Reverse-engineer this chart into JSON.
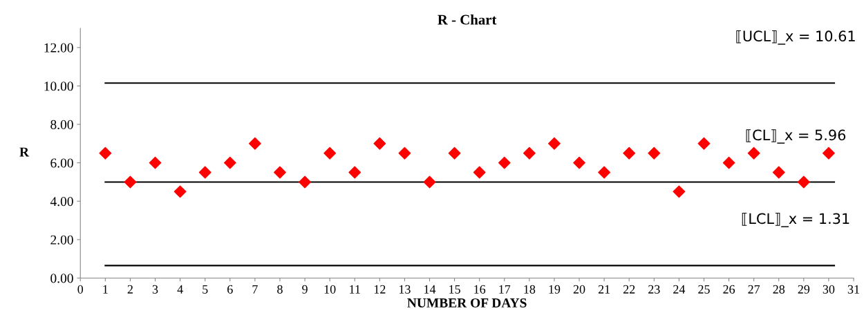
{
  "chart_data": {
    "type": "scatter",
    "title": "R - Chart",
    "xlabel": "NUMBER OF DAYS",
    "ylabel": "R",
    "x": [
      1,
      2,
      3,
      4,
      5,
      6,
      7,
      8,
      9,
      10,
      11,
      12,
      13,
      14,
      15,
      16,
      17,
      18,
      19,
      20,
      21,
      22,
      23,
      24,
      25,
      26,
      27,
      28,
      29,
      30
    ],
    "series": [
      {
        "color": "#ff0000",
        "values": [
          6.5,
          5,
          6,
          4.5,
          5.5,
          6,
          7,
          5.5,
          5,
          6.5,
          5.5,
          7,
          6.5,
          5,
          6.5,
          5.5,
          6,
          6.5,
          7,
          6,
          5.5,
          6.5,
          6.5,
          4.5,
          7,
          6,
          6.5,
          5.5,
          5,
          6.5
        ]
      }
    ],
    "marker": "diamond",
    "xlim": [
      0,
      31
    ],
    "xticks": [
      0,
      1,
      2,
      3,
      4,
      5,
      6,
      7,
      8,
      9,
      10,
      11,
      12,
      13,
      14,
      15,
      16,
      17,
      18,
      19,
      20,
      21,
      22,
      23,
      24,
      25,
      26,
      27,
      28,
      29,
      30,
      31
    ],
    "ylim": [
      0,
      13
    ],
    "yticks": [
      {
        "value": 0,
        "label": "0.00"
      },
      {
        "value": 2,
        "label": "2.00"
      },
      {
        "value": 4,
        "label": "4.00"
      },
      {
        "value": 6,
        "label": "6.00"
      },
      {
        "value": 8,
        "label": "8.00"
      },
      {
        "value": 10,
        "label": "10.00"
      },
      {
        "value": 12,
        "label": "12.00"
      }
    ],
    "ref_lines": [
      {
        "axis": "y",
        "value": 10.15,
        "color": "#000000"
      },
      {
        "axis": "y",
        "value": 5.0,
        "color": "#000000"
      },
      {
        "axis": "y",
        "value": 0.65,
        "color": "#000000"
      }
    ],
    "annotations": [
      "⟦UCL⟧_x = 10.61",
      "⟦CL⟧_x = 5.96",
      "⟦LCL⟧_x = 1.31"
    ],
    "grid": false,
    "legend": false
  }
}
